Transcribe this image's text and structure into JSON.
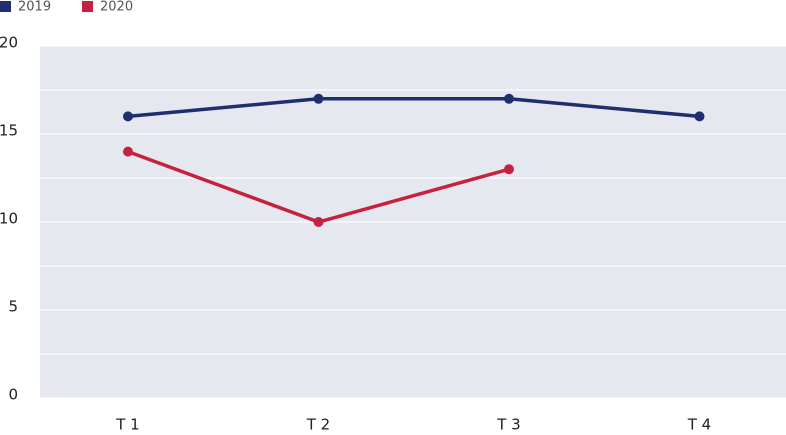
{
  "chart_data": {
    "type": "line",
    "categories": [
      "T 1",
      "T 2",
      "T 3",
      "T 4"
    ],
    "series": [
      {
        "name": "2019",
        "color": "#1f2f6e",
        "values": [
          16,
          17,
          17,
          16
        ]
      },
      {
        "name": "2020",
        "color": "#c8213f",
        "values": [
          14,
          10,
          13,
          null
        ]
      }
    ],
    "ylim": [
      0,
      20
    ],
    "yticks": [
      0,
      5,
      10,
      15,
      20
    ],
    "minor_yticks": [
      2.5,
      7.5,
      12.5,
      17.5
    ],
    "grid": true
  }
}
